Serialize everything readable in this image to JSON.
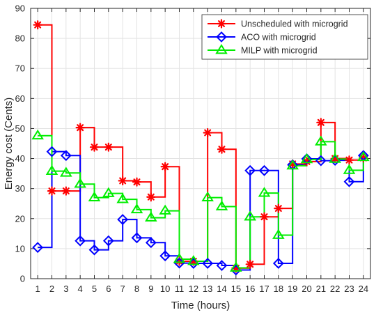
{
  "chart_data": {
    "type": "line",
    "step": "post",
    "title": "",
    "xlabel": "Time (hours)",
    "ylabel": "Energy cost (Cents)",
    "xlim": [
      0.5,
      24.5
    ],
    "ylim": [
      0,
      90
    ],
    "x": [
      1,
      2,
      3,
      4,
      5,
      6,
      7,
      8,
      9,
      10,
      11,
      12,
      13,
      14,
      15,
      16,
      17,
      18,
      19,
      20,
      21,
      22,
      23,
      24
    ],
    "xticks": [
      1,
      2,
      3,
      4,
      5,
      6,
      7,
      8,
      9,
      10,
      11,
      12,
      13,
      14,
      15,
      16,
      17,
      18,
      19,
      20,
      21,
      22,
      23,
      24
    ],
    "yticks": [
      0,
      10,
      20,
      30,
      40,
      50,
      60,
      70,
      80,
      90
    ],
    "grid": true,
    "legend_position": "top-right",
    "series": [
      {
        "name": "Unscheduled with microgrid",
        "color": "#ff0000",
        "marker": "asterisk",
        "values": [
          84.5,
          29.2,
          29.2,
          50.3,
          43.8,
          43.8,
          32.6,
          32.2,
          27.2,
          37.3,
          5.8,
          5.8,
          48.6,
          43.1,
          3.5,
          4.8,
          20.6,
          23.4,
          38.2,
          39.0,
          52.0,
          40.0,
          39.5,
          40.2
        ]
      },
      {
        "name": "ACO with microgrid",
        "color": "#0000ff",
        "marker": "diamond",
        "values": [
          10.4,
          42.3,
          41.0,
          12.6,
          9.6,
          12.6,
          19.7,
          13.6,
          12.0,
          7.6,
          5.2,
          5.1,
          5.1,
          4.4,
          2.9,
          36.0,
          36.0,
          5.1,
          37.9,
          39.9,
          39.3,
          39.4,
          32.3,
          41.0
        ]
      },
      {
        "name": "MILP with microgrid",
        "color": "#00ee00",
        "marker": "triangle",
        "values": [
          47.6,
          35.8,
          35.2,
          31.5,
          27.0,
          28.4,
          26.4,
          23.0,
          20.3,
          22.6,
          6.5,
          5.8,
          27.0,
          24.0,
          3.6,
          20.6,
          28.5,
          14.5,
          37.6,
          39.7,
          45.6,
          39.8,
          36.1,
          40.4
        ]
      }
    ]
  }
}
